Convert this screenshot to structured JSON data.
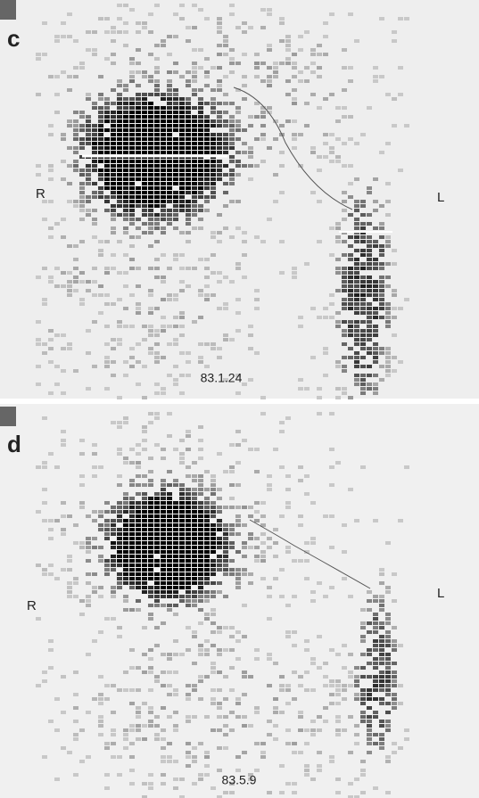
{
  "panels": [
    {
      "label": "c",
      "left_marker": "R",
      "right_marker": "L",
      "date": "83.1.24"
    },
    {
      "label": "d",
      "left_marker": "R",
      "right_marker": "L",
      "date": "83.5.9"
    }
  ]
}
